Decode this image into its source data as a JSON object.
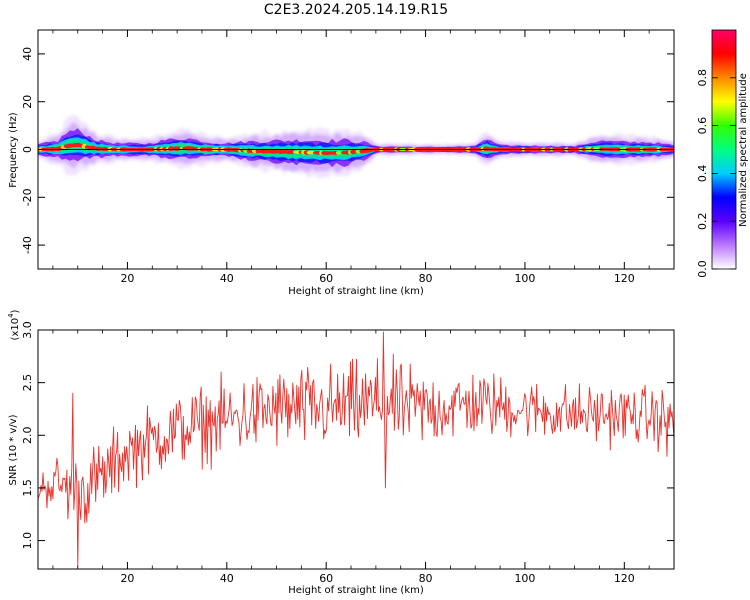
{
  "title": "C2E3.2024.205.14.19.R15",
  "colors": {
    "snr_line": "#e8322c",
    "centerline": "#000000",
    "axes": "#000000",
    "background": "#ffffff"
  },
  "chart_data": [
    {
      "type": "heatmap",
      "xlabel": "Height of straight line (km)",
      "ylabel": "Frequency (Hz)",
      "xlim": [
        2,
        130
      ],
      "ylim": [
        -50,
        50
      ],
      "x_ticks": [
        20,
        40,
        60,
        80,
        100,
        120
      ],
      "y_ticks": [
        -40,
        -20,
        0,
        20,
        40
      ],
      "colorbar": {
        "label": "Normalized spectral amplitude",
        "range": [
          0,
          1
        ],
        "ticks": [
          "0.0",
          "0.2",
          "0.4",
          "0.6",
          "0.8"
        ],
        "tick_values": [
          0.0,
          0.2,
          0.4,
          0.6,
          0.8
        ],
        "colormap": [
          "#ffffff",
          "#bb77ff",
          "#5a00ff",
          "#0000ff",
          "#00ccff",
          "#00ff80",
          "#33ff00",
          "#ffff00",
          "#ff8800",
          "#ff0000",
          "#ff0066"
        ]
      },
      "ridge": {
        "center_freq_hz": [
          [
            2,
            0
          ],
          [
            6,
            0.2
          ],
          [
            8,
            1.5
          ],
          [
            10,
            2
          ],
          [
            12,
            1
          ],
          [
            14,
            0.3
          ],
          [
            18,
            0
          ],
          [
            24,
            0
          ],
          [
            28,
            0.3
          ],
          [
            32,
            0.5
          ],
          [
            36,
            0
          ],
          [
            40,
            0
          ],
          [
            44,
            -0.5
          ],
          [
            48,
            -0.8
          ],
          [
            52,
            -1
          ],
          [
            56,
            -1.2
          ],
          [
            60,
            -1.5
          ],
          [
            64,
            -1.3
          ],
          [
            68,
            -0.5
          ],
          [
            70,
            0
          ],
          [
            80,
            0
          ],
          [
            90,
            0
          ],
          [
            92,
            0.3
          ],
          [
            95,
            0
          ],
          [
            110,
            0
          ],
          [
            115,
            0.2
          ],
          [
            120,
            0
          ],
          [
            130,
            0
          ]
        ],
        "half_width_hz": [
          [
            2,
            1.2
          ],
          [
            6,
            2
          ],
          [
            8,
            3.5
          ],
          [
            10,
            3.5
          ],
          [
            12,
            2.8
          ],
          [
            14,
            2
          ],
          [
            18,
            1.5
          ],
          [
            24,
            1.4
          ],
          [
            28,
            2.2
          ],
          [
            32,
            2.5
          ],
          [
            36,
            1.8
          ],
          [
            40,
            1.5
          ],
          [
            44,
            2.2
          ],
          [
            48,
            2.5
          ],
          [
            52,
            2.8
          ],
          [
            56,
            3
          ],
          [
            60,
            3
          ],
          [
            64,
            3
          ],
          [
            68,
            2
          ],
          [
            70,
            0.8
          ],
          [
            80,
            0.6
          ],
          [
            90,
            0.8
          ],
          [
            92,
            2.5
          ],
          [
            95,
            1
          ],
          [
            110,
            0.8
          ],
          [
            115,
            2
          ],
          [
            120,
            1.8
          ],
          [
            125,
            1.8
          ],
          [
            130,
            1
          ]
        ]
      }
    },
    {
      "type": "line",
      "xlabel": "Height of straight line (km)",
      "ylabel": "SNR (10 * v/v)",
      "y_multiplier": "(x10",
      "y_multiplier_exp": "4",
      "y_multiplier_close": ")",
      "xlim": [
        2,
        130
      ],
      "ylim": [
        0.73,
        3.0
      ],
      "x_ticks": [
        20,
        40,
        60,
        80,
        100,
        120
      ],
      "y_ticks": [
        1.0,
        1.5,
        2.0,
        2.5,
        3.0
      ],
      "y_tick_labels": [
        "1.0",
        "1.5",
        "2.0",
        "2.5",
        "3.0"
      ],
      "series": [
        {
          "color": "#e8322c",
          "x_range": [
            2,
            130
          ],
          "n_points": 640,
          "trend": [
            [
              2,
              1.5
            ],
            [
              6,
              1.55
            ],
            [
              10,
              1.45
            ],
            [
              15,
              1.6
            ],
            [
              20,
              1.85
            ],
            [
              30,
              2.05
            ],
            [
              40,
              2.15
            ],
            [
              50,
              2.25
            ],
            [
              60,
              2.25
            ],
            [
              70,
              2.3
            ],
            [
              80,
              2.25
            ],
            [
              90,
              2.3
            ],
            [
              100,
              2.25
            ],
            [
              110,
              2.2
            ],
            [
              120,
              2.2
            ],
            [
              130,
              2.15
            ]
          ],
          "noise_amp": [
            [
              2,
              0.18
            ],
            [
              8,
              0.35
            ],
            [
              12,
              0.4
            ],
            [
              20,
              0.35
            ],
            [
              40,
              0.4
            ],
            [
              70,
              0.45
            ],
            [
              100,
              0.3
            ],
            [
              130,
              0.3
            ]
          ],
          "features": [
            {
              "x": 9,
              "y": 2.4
            },
            {
              "x": 10,
              "y": 0.75
            },
            {
              "x": 71.5,
              "y": 2.98
            },
            {
              "x": 72,
              "y": 1.5
            },
            {
              "x": 128.5,
              "y": 1.8
            }
          ]
        }
      ]
    }
  ]
}
